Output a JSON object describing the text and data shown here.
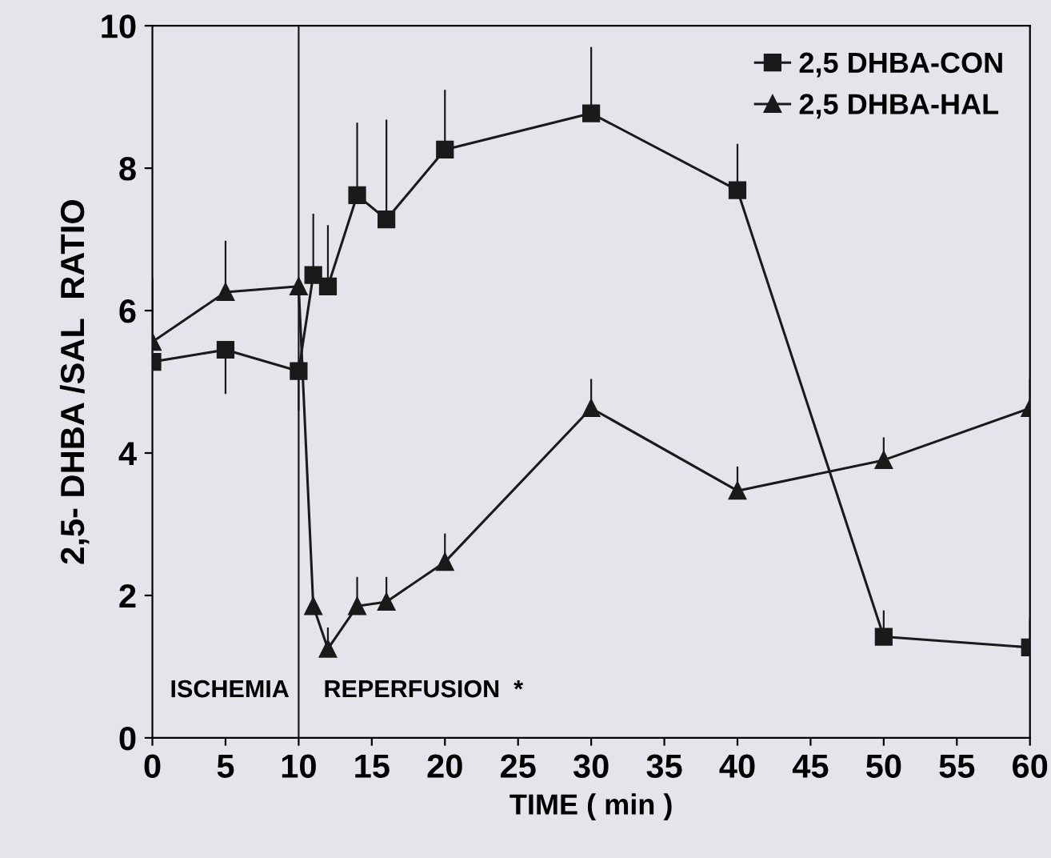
{
  "chart_data": {
    "type": "line",
    "xlabel": "TIME ( min )",
    "ylabel": "2,5- DHBA /SAL  RATIO",
    "x": [
      0,
      5,
      10,
      11,
      12,
      14,
      16,
      20,
      30,
      40,
      50,
      60
    ],
    "series": [
      {
        "name": "2,5 DHBA-CON",
        "color": "#1a1a1a",
        "marker": "square",
        "values": [
          5.28,
          5.45,
          5.15,
          6.5,
          6.34,
          7.62,
          7.28,
          8.26,
          8.77,
          7.69,
          1.42,
          1.27
        ],
        "errors": [
          null,
          [
            4.83,
            5.45
          ],
          [
            4.6,
            5.15
          ],
          [
            6.5,
            7.36
          ],
          [
            6.34,
            7.2
          ],
          [
            7.62,
            8.64
          ],
          [
            7.28,
            8.68
          ],
          [
            8.26,
            9.1
          ],
          [
            8.77,
            9.7
          ],
          [
            7.69,
            8.34
          ],
          [
            1.42,
            1.79
          ],
          [
            1.27,
            1.68
          ]
        ]
      },
      {
        "name": "2,5 DHBA-HAL",
        "color": "#1a1a1a",
        "marker": "triangle",
        "values": [
          5.56,
          6.26,
          6.34,
          1.85,
          1.25,
          1.85,
          1.91,
          2.47,
          4.63,
          3.47,
          3.9,
          4.63
        ],
        "errors": [
          [
            5.56,
            6.45
          ],
          [
            6.26,
            6.98
          ],
          null,
          null,
          [
            1.25,
            1.55
          ],
          [
            1.85,
            2.26
          ],
          [
            1.91,
            2.26
          ],
          [
            2.47,
            2.87
          ],
          [
            4.63,
            5.04
          ],
          [
            3.47,
            3.81
          ],
          [
            3.9,
            4.22
          ],
          [
            4.63,
            5.04
          ]
        ]
      }
    ],
    "xlim": [
      0,
      60
    ],
    "xticks": [
      0,
      5,
      10,
      15,
      20,
      25,
      30,
      35,
      40,
      45,
      50,
      55,
      60
    ],
    "ylim": [
      0,
      10
    ],
    "yticks": [
      0,
      2,
      4,
      6,
      8,
      10
    ],
    "ref_lines": [
      {
        "axis": "x",
        "value": 10
      }
    ],
    "annotations": [
      "ISCHEMIA",
      "REPERFUSION  *"
    ],
    "legend": "top right",
    "grid": false,
    "line_style": "solid"
  }
}
